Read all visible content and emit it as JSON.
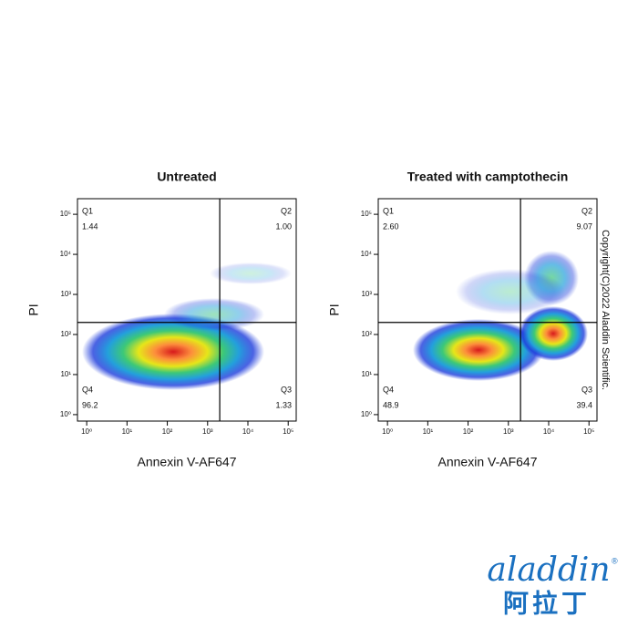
{
  "chart_data": [
    {
      "type": "scatter",
      "title": "Untreated",
      "x_label": "Annexin V-AF647",
      "y_label": "PI",
      "x_log": true,
      "y_log": true,
      "xlim": [
        0.59,
        158000
      ],
      "ylim": [
        0.69,
        245000
      ],
      "xticks": [
        {
          "value": 1,
          "label": "10⁰"
        },
        {
          "value": 10,
          "label": "10¹"
        },
        {
          "value": 100,
          "label": "10²"
        },
        {
          "value": 1000,
          "label": "10³"
        },
        {
          "value": 10000,
          "label": "10⁴"
        },
        {
          "value": 100000,
          "label": "10⁵"
        }
      ],
      "yticks": [
        {
          "value": 1,
          "label": "10⁰"
        },
        {
          "value": 10,
          "label": "10¹"
        },
        {
          "value": 100,
          "label": "10²"
        },
        {
          "value": 1000,
          "label": "10³"
        },
        {
          "value": 10000,
          "label": "10⁴"
        },
        {
          "value": 100000,
          "label": "10⁵"
        }
      ],
      "gate_x": 2000,
      "gate_y": 200,
      "quadrants": [
        "Q1",
        "Q2",
        "Q3",
        "Q4"
      ],
      "values": [
        1.44,
        1.0,
        1.33,
        96.2
      ],
      "value_labels": [
        "1.44",
        "1.00",
        "1.33",
        "96.2"
      ]
    },
    {
      "type": "scatter",
      "title": "Treated with camptothecin",
      "x_label": "Annexin V-AF647",
      "y_label": "PI",
      "x_log": true,
      "y_log": true,
      "xlim": [
        0.59,
        158000
      ],
      "ylim": [
        0.69,
        245000
      ],
      "xticks": [
        {
          "value": 1,
          "label": "10⁰"
        },
        {
          "value": 10,
          "label": "10¹"
        },
        {
          "value": 100,
          "label": "10²"
        },
        {
          "value": 1000,
          "label": "10³"
        },
        {
          "value": 10000,
          "label": "10⁴"
        },
        {
          "value": 100000,
          "label": "10⁵"
        }
      ],
      "yticks": [
        {
          "value": 1,
          "label": "10⁰"
        },
        {
          "value": 10,
          "label": "10¹"
        },
        {
          "value": 100,
          "label": "10²"
        },
        {
          "value": 1000,
          "label": "10³"
        },
        {
          "value": 10000,
          "label": "10⁴"
        },
        {
          "value": 100000,
          "label": "10⁵"
        }
      ],
      "gate_x": 2000,
      "gate_y": 200,
      "quadrants": [
        "Q1",
        "Q2",
        "Q3",
        "Q4"
      ],
      "values": [
        2.6,
        9.07,
        39.4,
        48.9
      ],
      "value_labels": [
        "2.60",
        "9.07",
        "39.4",
        "48.9"
      ]
    }
  ],
  "copyright": "Copyright(C)2022 Aladdin Scientific.",
  "logo": {
    "text": "aladdin",
    "chinese": "阿拉丁",
    "mark": "®"
  }
}
